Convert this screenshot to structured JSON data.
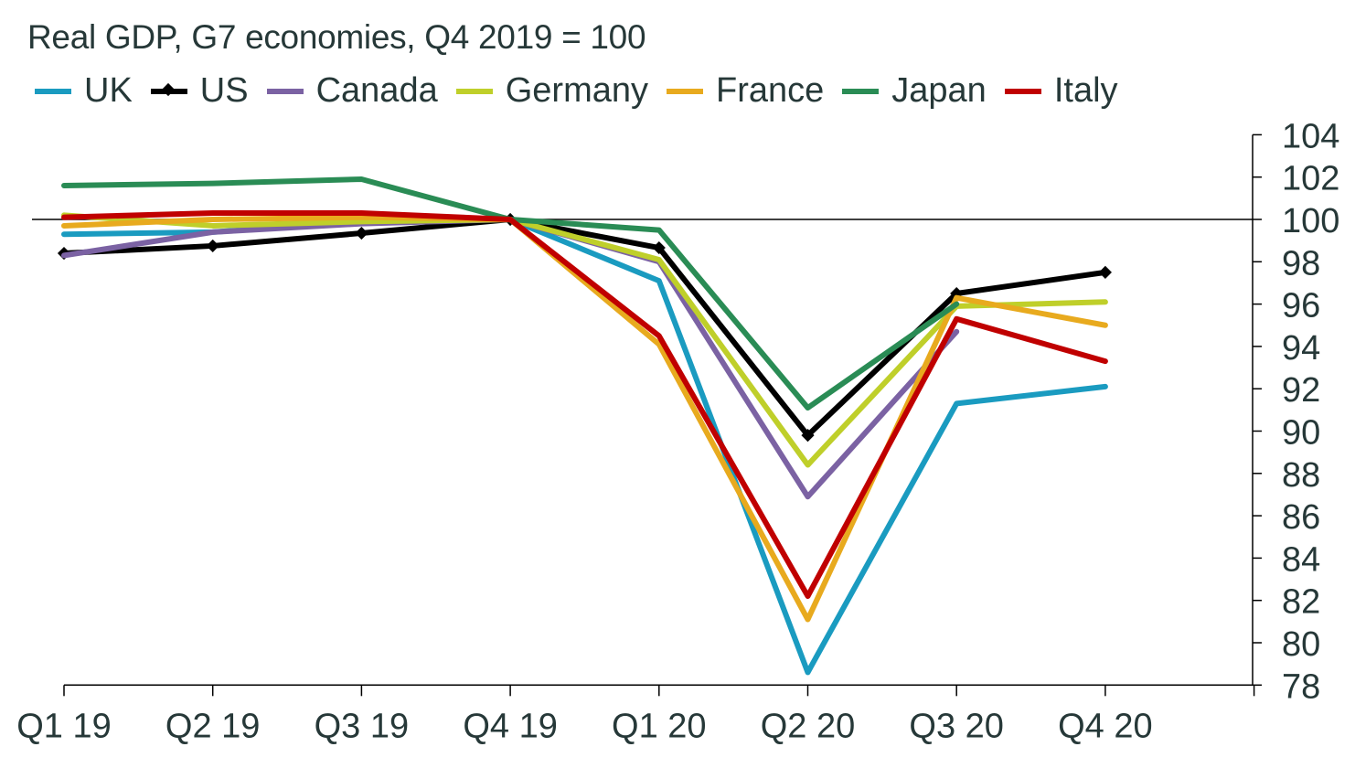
{
  "chart_data": {
    "type": "line",
    "title": "Real GDP, G7 economies, Q4 2019 = 100",
    "xlabel": "",
    "ylabel": "",
    "categories": [
      "Q1 19",
      "Q2 19",
      "Q3 19",
      "Q4 19",
      "Q1 20",
      "Q2 20",
      "Q3 20",
      "Q4 20"
    ],
    "ylim": [
      78,
      104
    ],
    "yticks": [
      "104",
      "102",
      "100",
      "98",
      "96",
      "94",
      "92",
      "90",
      "88",
      "86",
      "84",
      "82",
      "80",
      "78"
    ],
    "y_axis_side": "right",
    "reference_line": 100,
    "grid": false,
    "legend_placement": "top",
    "series": [
      {
        "name": "UK",
        "color": "#1a9bc0",
        "values": [
          99.3,
          99.4,
          99.9,
          100,
          97.1,
          78.6,
          91.3,
          92.1
        ]
      },
      {
        "name": "US",
        "color": "#000000",
        "marker": "diamond",
        "values": [
          98.4,
          98.75,
          99.35,
          100,
          98.66,
          89.8,
          96.5,
          97.5
        ]
      },
      {
        "name": "Canada",
        "color": "#7b62a3",
        "values": [
          98.3,
          99.4,
          99.8,
          100,
          98.0,
          86.9,
          94.7,
          null
        ]
      },
      {
        "name": "Germany",
        "color": "#bfcf2a",
        "values": [
          100.2,
          99.7,
          99.9,
          100,
          98.1,
          88.4,
          95.9,
          96.1
        ]
      },
      {
        "name": "France",
        "color": "#e8aa1e",
        "values": [
          99.7,
          100.0,
          100.1,
          100,
          94.1,
          81.1,
          96.3,
          95.0
        ]
      },
      {
        "name": "Japan",
        "color": "#2a8c55",
        "values": [
          101.6,
          101.7,
          101.9,
          100,
          99.5,
          91.1,
          96.0,
          null
        ]
      },
      {
        "name": "Italy",
        "color": "#c00000",
        "values": [
          100.1,
          100.3,
          100.3,
          100,
          94.5,
          82.2,
          95.3,
          93.3
        ]
      }
    ]
  }
}
